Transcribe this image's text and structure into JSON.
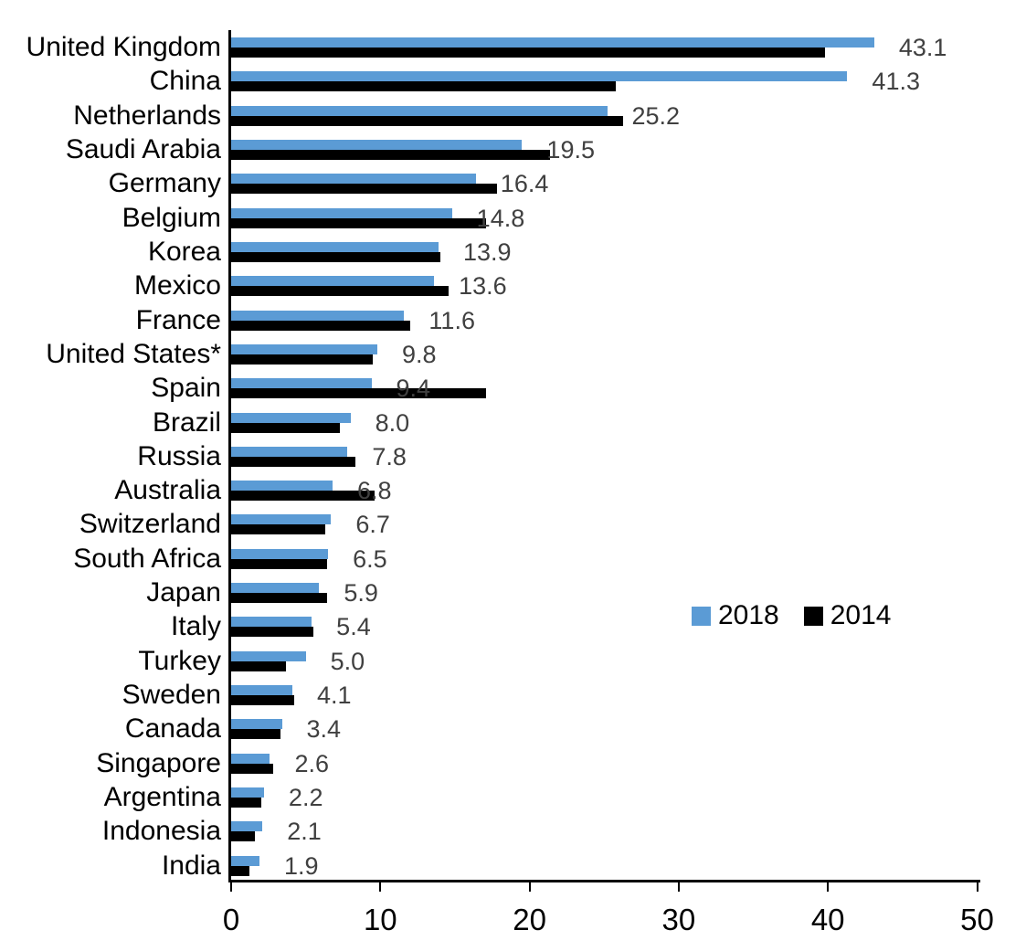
{
  "chart_data": {
    "type": "bar",
    "orientation": "horizontal",
    "title": "",
    "categories": [
      "United Kingdom",
      "China",
      "Netherlands",
      "Saudi Arabia",
      "Germany",
      "Belgium",
      "Korea",
      "Mexico",
      "France",
      "United States*",
      "Spain",
      "Brazil",
      "Russia",
      "Australia",
      "Switzerland",
      "South Africa",
      "Japan",
      "Italy",
      "Turkey",
      "Sweden",
      "Canada",
      "Singapore",
      "Argentina",
      "Indonesia",
      "India"
    ],
    "series": [
      {
        "name": "2018",
        "color": "#5B9BD5",
        "values": [
          43.1,
          41.3,
          25.2,
          19.5,
          16.4,
          14.8,
          13.9,
          13.6,
          11.6,
          9.8,
          9.4,
          8.0,
          7.8,
          6.8,
          6.7,
          6.5,
          5.9,
          5.4,
          5.0,
          4.1,
          3.4,
          2.6,
          2.2,
          2.1,
          1.9
        ],
        "data_labels": [
          "43.1",
          "41.3",
          "25.2",
          "19.5",
          "16.4",
          "14.8",
          "13.9",
          "13.6",
          "11.6",
          "9.8",
          "9.4",
          "8.0",
          "7.8",
          "6.8",
          "6.7",
          "6.5",
          "5.9",
          "5.4",
          "5.0",
          "4.1",
          "3.4",
          "2.6",
          "2.2",
          "2.1",
          "1.9"
        ]
      },
      {
        "name": "2014",
        "color": "#000000",
        "values": [
          39.8,
          25.8,
          26.3,
          21.4,
          17.8,
          17.1,
          14.0,
          14.6,
          12.0,
          9.5,
          17.1,
          7.3,
          8.3,
          9.6,
          6.3,
          6.4,
          6.4,
          5.5,
          3.7,
          4.2,
          3.3,
          2.8,
          2.0,
          1.6,
          1.2
        ]
      }
    ],
    "xlim": [
      0,
      50
    ],
    "x_ticks": [
      0,
      10,
      20,
      30,
      40,
      50
    ],
    "x_tick_labels": [
      "0",
      "10",
      "20",
      "30",
      "40",
      "50"
    ],
    "grid": false,
    "legend": {
      "position": "middle-right",
      "entries": [
        "2018",
        "2014"
      ]
    },
    "value_label_color": "#404040",
    "axis_color": "#000000"
  }
}
